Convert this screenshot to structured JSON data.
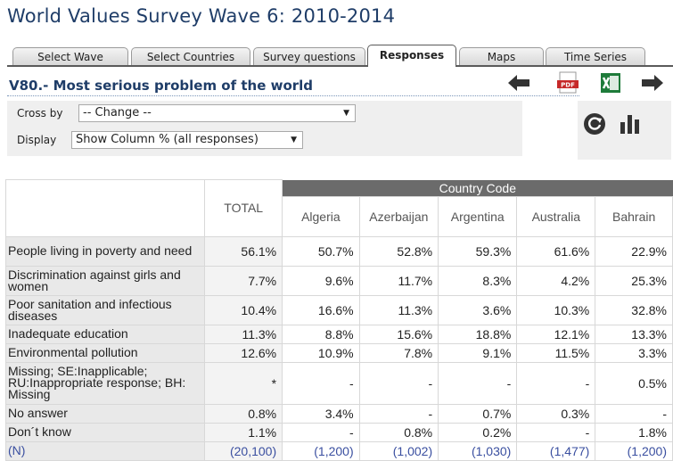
{
  "title": "World Values Survey Wave 6: 2010-2014",
  "tabs": [
    "Select Wave",
    "Select Countries",
    "Survey questions",
    "Responses",
    "Maps",
    "Time Series"
  ],
  "active_tab": "Responses",
  "question": "V80.- Most serious problem of the world",
  "controls": {
    "cross_by_label": "Cross by",
    "cross_by_value": "-- Change --",
    "display_label": "Display",
    "display_value": "Show Column % (all responses)"
  },
  "icons": [
    "arrow-left-icon",
    "pdf-icon",
    "excel-icon",
    "arrow-right-icon",
    "refresh-icon",
    "bar-chart-icon"
  ],
  "table": {
    "group_header": "Country Code",
    "total_header": "TOTAL",
    "countries": [
      "Algeria",
      "Azerbaijan",
      "Argentina",
      "Australia",
      "Bahrain"
    ],
    "rows": [
      {
        "label": "People living in poverty and need",
        "total": "56.1%",
        "values": [
          "50.7%",
          "52.8%",
          "59.3%",
          "61.6%",
          "22.9%"
        ]
      },
      {
        "label": "Discrimination against girls and women",
        "total": "7.7%",
        "values": [
          "9.6%",
          "11.7%",
          "8.3%",
          "4.2%",
          "25.3%"
        ]
      },
      {
        "label": "Poor sanitation and infectious diseases",
        "total": "10.4%",
        "values": [
          "16.6%",
          "11.3%",
          "3.6%",
          "10.3%",
          "32.8%"
        ]
      },
      {
        "label": "Inadequate education",
        "total": "11.3%",
        "values": [
          "8.8%",
          "15.6%",
          "18.8%",
          "12.1%",
          "13.3%"
        ]
      },
      {
        "label": "Environmental pollution",
        "total": "12.6%",
        "values": [
          "10.9%",
          "7.8%",
          "9.1%",
          "11.5%",
          "3.3%"
        ]
      },
      {
        "label": "Missing; SE:Inapplicable; RU:Inappropriate response; BH: Missing",
        "total": "*",
        "values": [
          "-",
          "-",
          "-",
          "-",
          "0.5%"
        ]
      },
      {
        "label": "No answer",
        "total": "0.8%",
        "values": [
          "3.4%",
          "-",
          "0.7%",
          "0.3%",
          "-"
        ]
      },
      {
        "label": "Don´t know",
        "total": "1.1%",
        "values": [
          "-",
          "0.8%",
          "0.2%",
          "-",
          "1.8%"
        ]
      }
    ],
    "n_row": {
      "label": "(N)",
      "total": "(20,100)",
      "values": [
        "(1,200)",
        "(1,002)",
        "(1,030)",
        "(1,477)",
        "(1,200)"
      ]
    }
  }
}
